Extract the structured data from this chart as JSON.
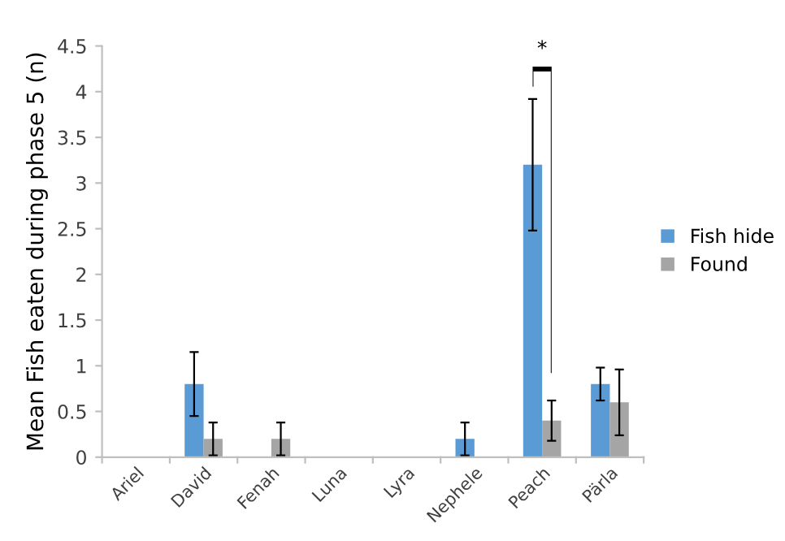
{
  "chart_data": {
    "type": "bar",
    "categories": [
      "Ariel",
      "David",
      "Fenah",
      "Luna",
      "Lyra",
      "Nephele",
      "Peach",
      "Pärla"
    ],
    "ylabel": "Mean Fish eaten during phase 5 (n)",
    "ylim": [
      0,
      4.5
    ],
    "yticks": [
      0,
      0.5,
      1,
      1.5,
      2,
      2.5,
      3,
      3.5,
      4,
      4.5
    ],
    "series": [
      {
        "name": "Fish hide",
        "color": "#5b9bd5",
        "values": [
          0,
          0.8,
          0,
          0,
          0,
          0.2,
          3.2,
          0.8
        ],
        "errors": [
          null,
          0.35,
          null,
          null,
          null,
          0.18,
          0.72,
          0.18
        ]
      },
      {
        "name": "Found",
        "color": "#a5a5a5",
        "values": [
          0,
          0.2,
          0.2,
          0,
          0,
          0,
          0.4,
          0.6
        ],
        "errors": [
          null,
          0.18,
          0.18,
          null,
          null,
          null,
          0.22,
          0.36
        ]
      }
    ],
    "annotations": [
      "*"
    ],
    "legend": "right",
    "grid": false
  }
}
